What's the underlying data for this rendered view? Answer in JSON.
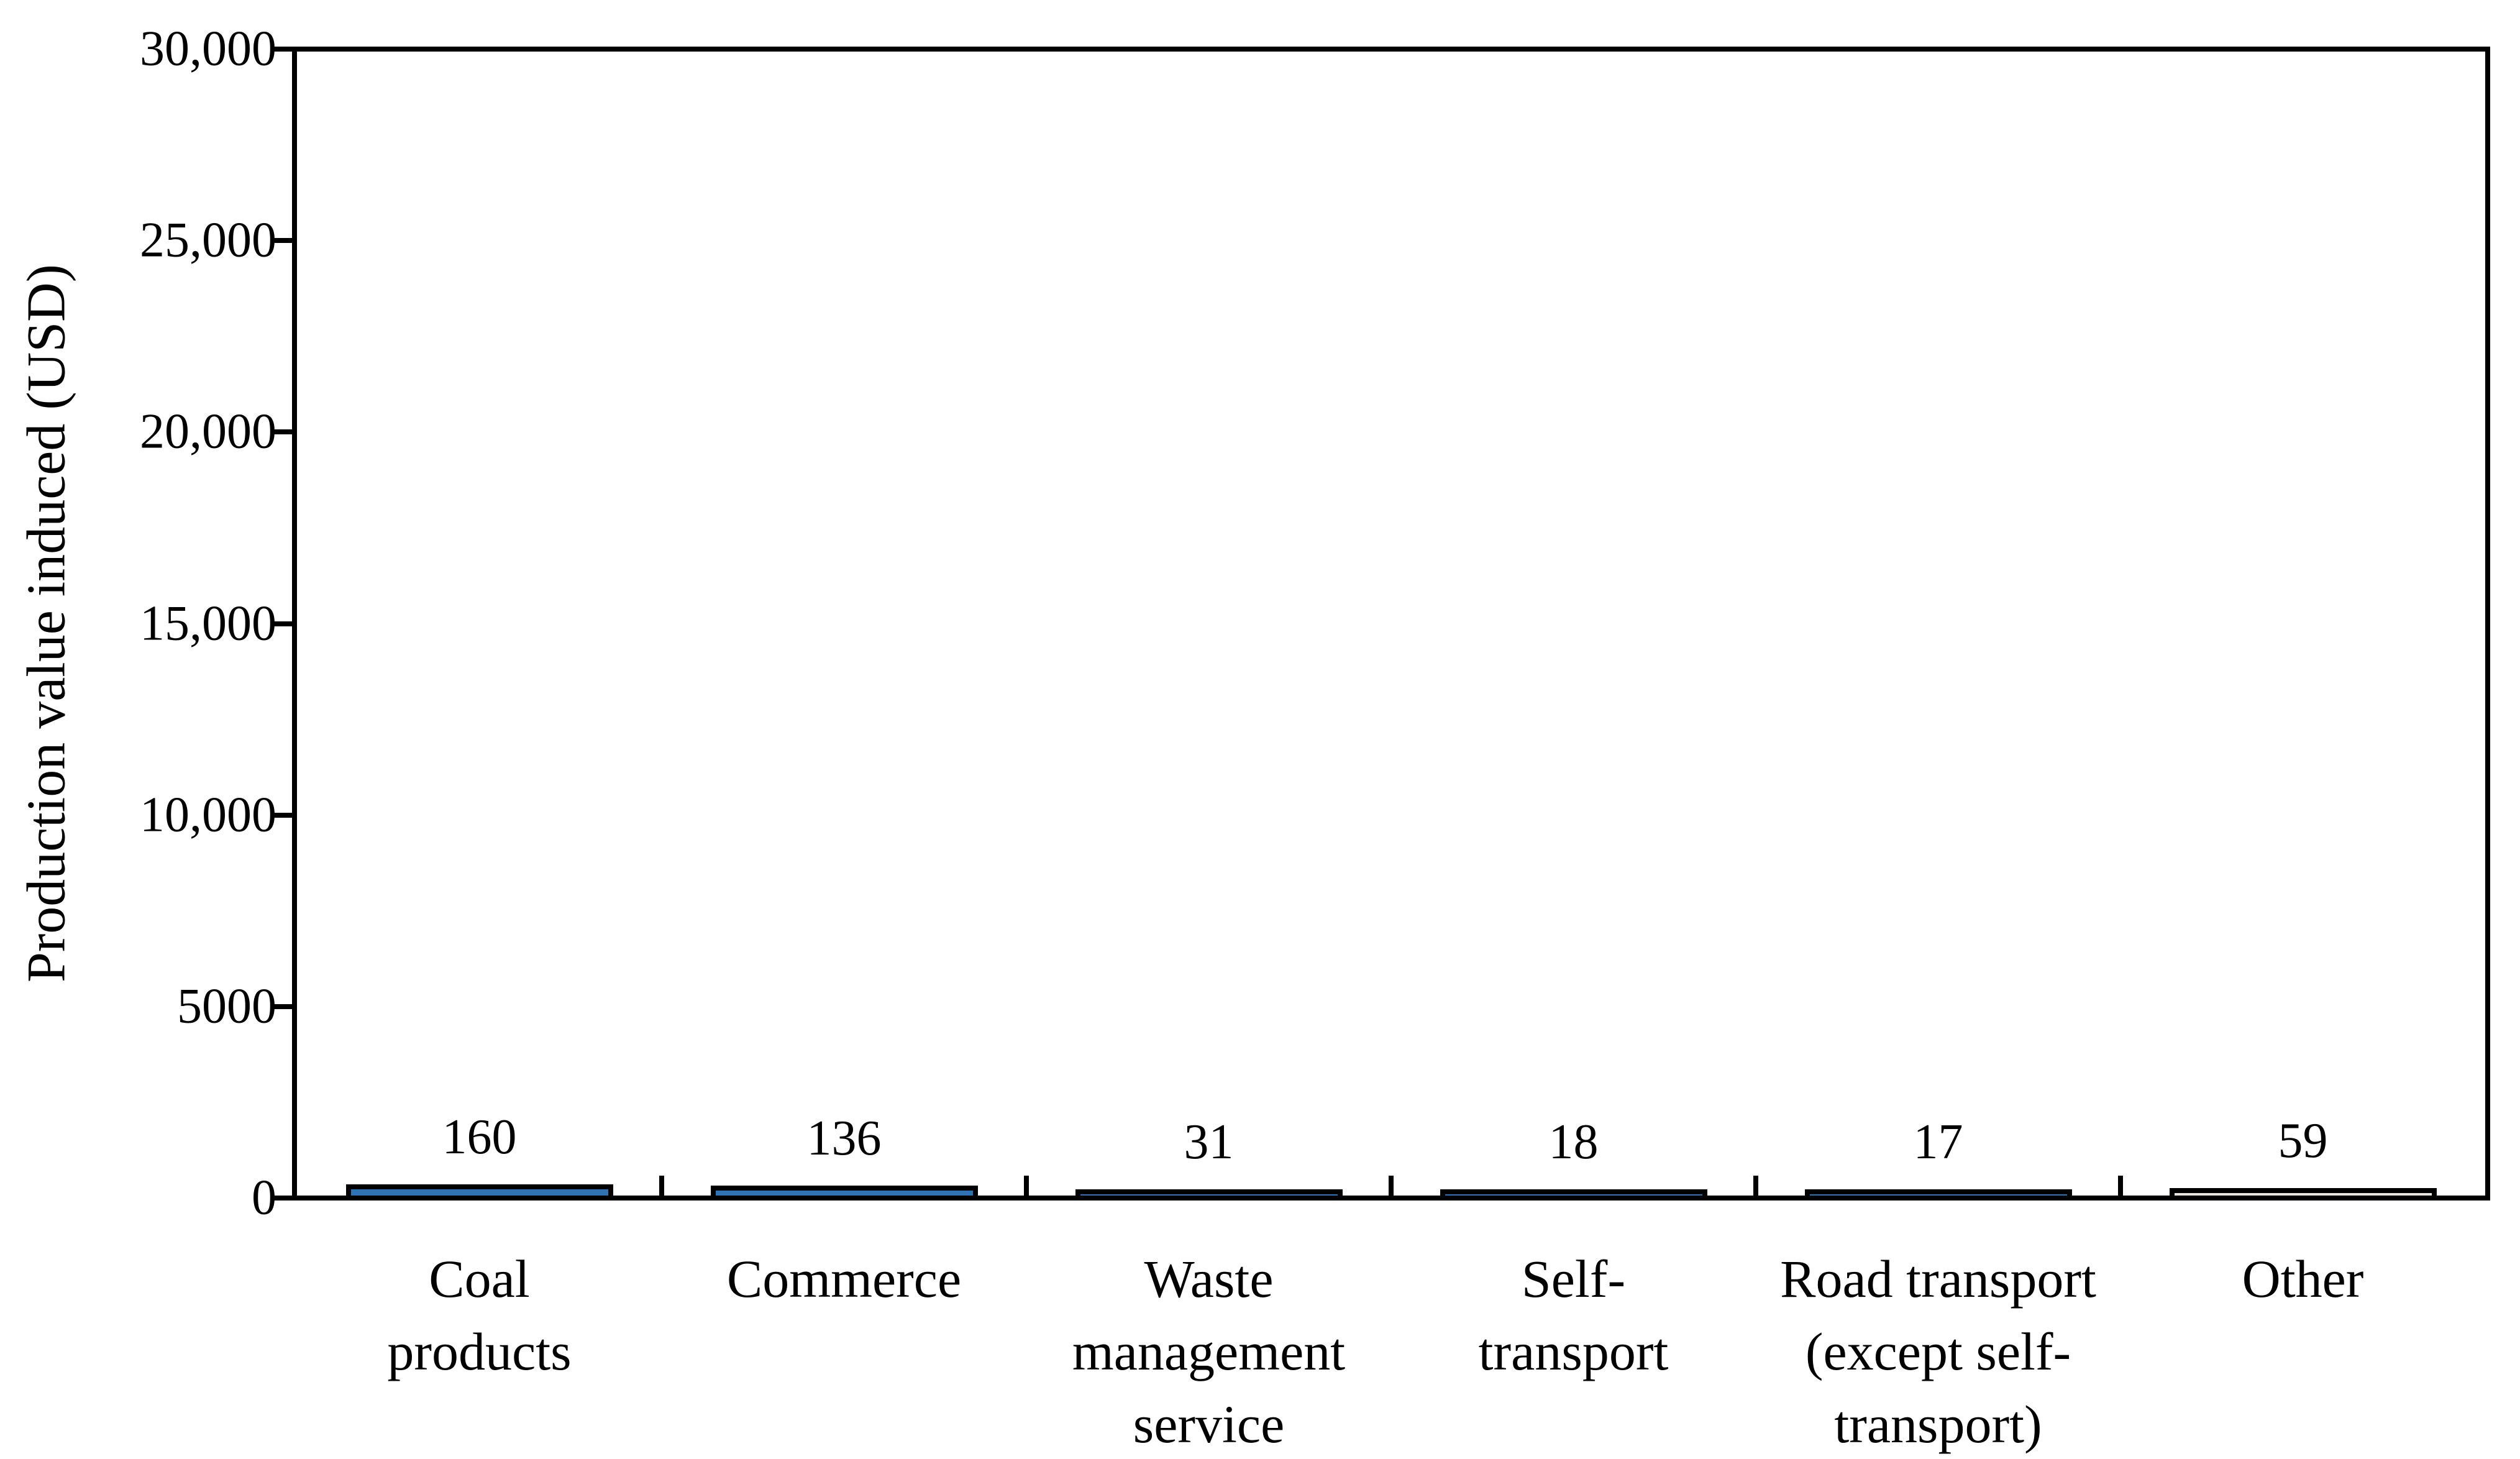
{
  "chart_data": {
    "type": "bar",
    "title": "",
    "ylabel": "Production value induced (USD)",
    "xlabel": "",
    "ylim": [
      0,
      30000
    ],
    "ytick_values": [
      30000,
      25000,
      20000,
      15000,
      10000,
      5000,
      0
    ],
    "ytick_labels": [
      "30,000",
      "25,000",
      "20,000",
      "15,000",
      "10,000",
      "5000",
      "0"
    ],
    "categories": [
      "Coal products",
      "Commerce",
      "Waste management service",
      "Self-transport",
      "Road transport (except self-transport)",
      "Other"
    ],
    "category_label_lines": [
      [
        "Coal",
        "products"
      ],
      [
        "Commerce"
      ],
      [
        "Waste",
        "management",
        "service"
      ],
      [
        "Self-",
        "transport"
      ],
      [
        "Road transport",
        "(except self-",
        "transport)"
      ],
      [
        "Other"
      ]
    ],
    "values": [
      160,
      136,
      31,
      18,
      17,
      59
    ],
    "data_labels": [
      "160",
      "136",
      "31",
      "18",
      "17",
      "59"
    ],
    "bar_fill_colors": [
      "#2E74B5",
      "#2E74B5",
      "#2E74B5",
      "#2E74B5",
      "#2E74B5",
      "#E8E6DF"
    ],
    "bar_border_color": "#000000",
    "axis_color": "#000000",
    "plot_background": "#FFFFFF",
    "grid": false,
    "legend": false
  }
}
